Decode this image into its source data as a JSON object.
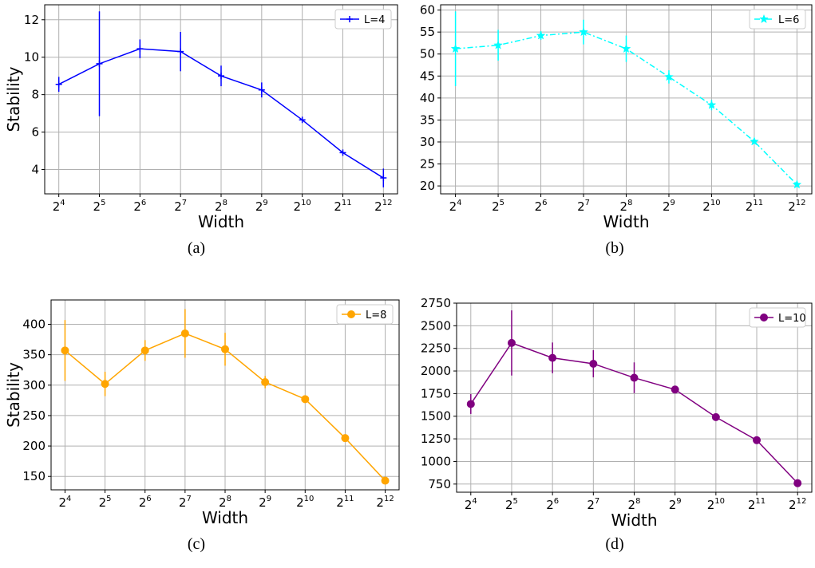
{
  "chart_data": [
    {
      "type": "line",
      "caption": "(a)",
      "xlabel": "Width",
      "ylabel": "Stability",
      "x_tick_base": "2",
      "x_tick_exponents": [
        "4",
        "5",
        "6",
        "7",
        "8",
        "9",
        "10",
        "11",
        "12"
      ],
      "y_ticks": [
        4,
        6,
        8,
        10,
        12
      ],
      "ylim": [
        2.7,
        12.8
      ],
      "grid": true,
      "legend_position": "upper right",
      "series": [
        {
          "name": "L=4",
          "color": "#0000ff",
          "line_style": "solid",
          "marker": "plus",
          "x_exponents": [
            4,
            5,
            6,
            7,
            8,
            9,
            10,
            11,
            12
          ],
          "values": [
            8.55,
            9.65,
            10.45,
            10.3,
            9.0,
            8.25,
            6.65,
            4.9,
            3.55
          ],
          "errors": [
            0.4,
            2.8,
            0.5,
            1.05,
            0.55,
            0.4,
            0.05,
            0.05,
            0.5
          ]
        }
      ]
    },
    {
      "type": "line",
      "caption": "(b)",
      "xlabel": "Width",
      "ylabel": "",
      "x_tick_base": "2",
      "x_tick_exponents": [
        "4",
        "5",
        "6",
        "7",
        "8",
        "9",
        "10",
        "11",
        "12"
      ],
      "y_ticks": [
        20,
        25,
        30,
        35,
        40,
        45,
        50,
        55,
        60
      ],
      "ylim": [
        18.2,
        61.2
      ],
      "grid": true,
      "legend_position": "upper right",
      "series": [
        {
          "name": "L=6",
          "color": "#00ffff",
          "line_style": "dashdot",
          "marker": "star",
          "x_exponents": [
            4,
            5,
            6,
            7,
            8,
            9,
            10,
            11,
            12
          ],
          "values": [
            51.2,
            52.0,
            54.2,
            55.0,
            51.2,
            44.8,
            38.4,
            30.1,
            20.3
          ],
          "errors": [
            8.5,
            3.5,
            1.0,
            2.8,
            3.0,
            1.5,
            1.2,
            0.3,
            0.3
          ]
        }
      ]
    },
    {
      "type": "line",
      "caption": "(c)",
      "xlabel": "Width",
      "ylabel": "Stability",
      "x_tick_base": "2",
      "x_tick_exponents": [
        "4",
        "5",
        "6",
        "7",
        "8",
        "9",
        "10",
        "11",
        "12"
      ],
      "y_ticks": [
        150,
        200,
        250,
        300,
        350,
        400
      ],
      "ylim": [
        128,
        440
      ],
      "grid": true,
      "legend_position": "upper right",
      "series": [
        {
          "name": "L=8",
          "color": "#ffa500",
          "line_style": "solid",
          "marker": "circle",
          "x_exponents": [
            4,
            5,
            6,
            7,
            8,
            9,
            10,
            11,
            12
          ],
          "values": [
            357,
            302,
            357,
            385,
            359,
            305,
            277,
            213,
            143
          ],
          "errors": [
            50,
            20,
            17,
            40,
            27,
            10,
            3,
            3,
            3
          ]
        }
      ]
    },
    {
      "type": "line",
      "caption": "(d)",
      "xlabel": "Width",
      "ylabel": "",
      "x_tick_base": "2",
      "x_tick_exponents": [
        "4",
        "5",
        "6",
        "7",
        "8",
        "9",
        "10",
        "11",
        "12"
      ],
      "y_ticks": [
        750,
        1000,
        1250,
        1500,
        1750,
        2000,
        2250,
        2500,
        2750
      ],
      "ylim": [
        660,
        2750
      ],
      "grid": true,
      "legend_position": "upper right",
      "series": [
        {
          "name": "L=10",
          "color": "#800080",
          "line_style": "solid",
          "marker": "circle",
          "x_exponents": [
            4,
            5,
            6,
            7,
            8,
            9,
            10,
            11,
            12
          ],
          "values": [
            1635,
            2310,
            2145,
            2080,
            1925,
            1795,
            1490,
            1235,
            760
          ],
          "errors": [
            110,
            360,
            170,
            150,
            170,
            20,
            10,
            20,
            10
          ]
        }
      ]
    }
  ]
}
